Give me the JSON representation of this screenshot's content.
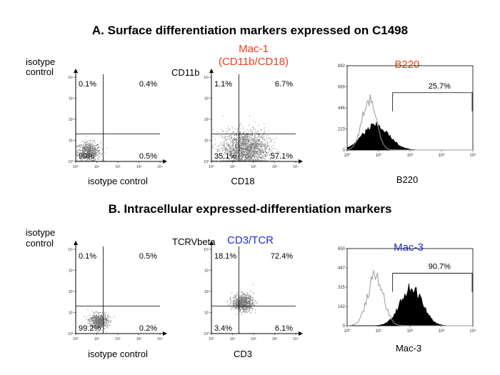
{
  "panel_a": {
    "title": "A. Surface differentiation markers expressed on C1498",
    "plot1": {
      "ylabel": [
        "isotype",
        "control"
      ],
      "xlabel": "isotype control"
    },
    "plot2": {
      "ylabel": "CD11b",
      "title": [
        "Mac-1",
        "(CD11b/CD18)"
      ],
      "xlabel": "CD18"
    },
    "plot3": {
      "title": "B220",
      "xlabel": "B220"
    }
  },
  "panel_b": {
    "title": "B. Intracellular expressed-differentiation markers",
    "plot1": {
      "ylabel": [
        "isotype",
        "control"
      ],
      "xlabel": "isotype control"
    },
    "plot2": {
      "ylabel": "TCRVbeta",
      "title": "CD3/TCR",
      "xlabel": "CD3"
    },
    "plot3": {
      "title": "Mac-3",
      "xlabel": "Mac-3"
    }
  },
  "colors": {
    "title_red": "#e8401c",
    "title_blue": "#1f2fd6",
    "points": "#777777",
    "hist_fill": "#000000",
    "hist_line": "#9a9a9a"
  },
  "chart_data": [
    {
      "type": "scatter",
      "panel": "A",
      "scale": "log",
      "xlim": [
        1,
        10000
      ],
      "ylim": [
        1,
        10000
      ],
      "x_ticks": [
        "10⁰",
        "10¹",
        "10²",
        "10³",
        "10⁴"
      ],
      "y_ticks": [
        "10⁰",
        "10¹",
        "10²",
        "10³",
        "10⁴"
      ],
      "gate": [
        20,
        20
      ],
      "quadrants": {
        "upper_left": "0.1%",
        "upper_right": "0.4%",
        "lower_left": "99%",
        "lower_right": "0.5%"
      },
      "population": {
        "center": [
          4,
          3
        ],
        "spread": 0.28,
        "points": 650
      }
    },
    {
      "type": "scatter",
      "panel": "A",
      "scale": "log",
      "xlim": [
        1,
        10000
      ],
      "ylim": [
        1,
        10000
      ],
      "x_ticks": [
        "10⁰",
        "10¹",
        "10²",
        "10³",
        "10⁴"
      ],
      "y_ticks": [
        "10⁰",
        "10¹",
        "10²",
        "10³",
        "10⁴"
      ],
      "gate": [
        20,
        20
      ],
      "quadrants": {
        "upper_left": "1.1%",
        "upper_right": "6.7%",
        "lower_left": "35.1%",
        "lower_right": "57.1%"
      },
      "population": {
        "center": [
          40,
          4
        ],
        "spread": 0.55,
        "points": 1800
      }
    },
    {
      "type": "histogram",
      "panel": "A",
      "scale": "log",
      "xlim": [
        1,
        10000
      ],
      "ylim": [
        0,
        892
      ],
      "x_ticks": [
        "10⁰",
        "10¹",
        "10²",
        "10³",
        "10⁴"
      ],
      "y_ticks": [
        "0",
        "223",
        "446",
        "669",
        "892"
      ],
      "gate_range": [
        28,
        10000
      ],
      "gate_label": "25.7%",
      "isotype": {
        "peak_x": 5,
        "peak_y": 540,
        "width": 0.22
      },
      "stained": {
        "peak_x": 8,
        "peak_y": 260,
        "width": 0.42
      }
    },
    {
      "type": "scatter",
      "panel": "B",
      "scale": "log",
      "xlim": [
        1,
        10000
      ],
      "ylim": [
        1,
        10000
      ],
      "x_ticks": [
        "10⁰",
        "10¹",
        "10²",
        "10³",
        "10⁴"
      ],
      "y_ticks": [
        "10⁰",
        "10¹",
        "10²",
        "10³",
        "10⁴"
      ],
      "gate": [
        20,
        20
      ],
      "quadrants": {
        "upper_left": "0.1%",
        "upper_right": "0.5%",
        "lower_left": "99.2%",
        "lower_right": "0.2%"
      },
      "population": {
        "center": [
          12,
          4
        ],
        "spread": 0.22,
        "points": 650
      }
    },
    {
      "type": "scatter",
      "panel": "B",
      "scale": "log",
      "xlim": [
        1,
        10000
      ],
      "ylim": [
        1,
        10000
      ],
      "x_ticks": [
        "10⁰",
        "10¹",
        "10²",
        "10³",
        "10⁴"
      ],
      "y_ticks": [
        "10⁰",
        "10¹",
        "10²",
        "10³",
        "10⁴"
      ],
      "gate": [
        20,
        20
      ],
      "quadrants": {
        "upper_left": "18.1%",
        "upper_right": "72.4%",
        "lower_left": "3.4%",
        "lower_right": "6.1%"
      },
      "population": {
        "center": [
          30,
          30
        ],
        "spread": 0.25,
        "points": 800
      }
    },
    {
      "type": "histogram",
      "panel": "B",
      "scale": "log",
      "xlim": [
        1,
        10000
      ],
      "ylim": [
        0,
        650
      ],
      "x_ticks": [
        "10⁰",
        "10¹",
        "10²",
        "10³",
        "10⁴"
      ],
      "y_ticks": [
        "0",
        "162",
        "325",
        "487",
        "650"
      ],
      "gate_range": [
        28,
        10000
      ],
      "gate_label": "90.7%",
      "isotype": {
        "peak_x": 8,
        "peak_y": 420,
        "width": 0.25
      },
      "stained": {
        "peak_x": 110,
        "peak_y": 320,
        "width": 0.35
      }
    }
  ]
}
